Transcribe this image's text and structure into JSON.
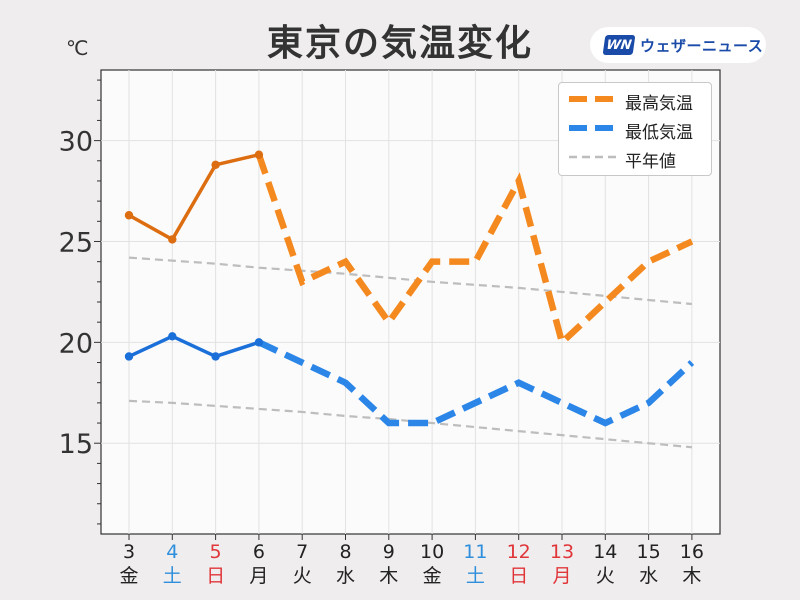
{
  "header": {
    "title": "東京の気温変化",
    "unit": "℃",
    "brand_logo": "WN",
    "brand_name": "ウェザーニュース"
  },
  "chart_data": {
    "type": "line",
    "ylim": [
      10.5,
      33.5
    ],
    "y_ticks": [
      15,
      20,
      25,
      30
    ],
    "grid": true,
    "legend_position": "top-right",
    "categories": [
      {
        "day": "3",
        "weekday": "金",
        "color": "#222222"
      },
      {
        "day": "4",
        "weekday": "土",
        "color": "#2f8fdd"
      },
      {
        "day": "5",
        "weekday": "日",
        "color": "#e0363a"
      },
      {
        "day": "6",
        "weekday": "月",
        "color": "#222222"
      },
      {
        "day": "7",
        "weekday": "火",
        "color": "#222222"
      },
      {
        "day": "8",
        "weekday": "水",
        "color": "#222222"
      },
      {
        "day": "9",
        "weekday": "木",
        "color": "#222222"
      },
      {
        "day": "10",
        "weekday": "金",
        "color": "#222222"
      },
      {
        "day": "11",
        "weekday": "土",
        "color": "#2f8fdd"
      },
      {
        "day": "12",
        "weekday": "日",
        "color": "#e0363a"
      },
      {
        "day": "13",
        "weekday": "月",
        "color": "#e0363a"
      },
      {
        "day": "14",
        "weekday": "火",
        "color": "#222222"
      },
      {
        "day": "15",
        "weekday": "水",
        "color": "#222222"
      },
      {
        "day": "16",
        "weekday": "木",
        "color": "#222222"
      }
    ],
    "series": [
      {
        "name": "最高気温",
        "observed_color": "#dc6d10",
        "forecast_color": "#f4891f",
        "observed_count": 4,
        "values": [
          26.3,
          25.1,
          28.8,
          29.3,
          23,
          24,
          21,
          24,
          24,
          28,
          20,
          22,
          24,
          25
        ]
      },
      {
        "name": "最低気温",
        "observed_color": "#1a6fd8",
        "forecast_color": "#2b86e8",
        "observed_count": 4,
        "values": [
          19.3,
          20.3,
          19.3,
          20.0,
          19,
          18,
          16,
          16,
          17,
          18,
          17,
          16,
          17,
          19
        ]
      },
      {
        "name": "平年値",
        "color": "#bdbdbd",
        "lines": [
          [
            24.2,
            24.05,
            23.9,
            23.7,
            23.55,
            23.4,
            23.2,
            23.0,
            22.85,
            22.7,
            22.5,
            22.3,
            22.1,
            21.9
          ],
          [
            17.1,
            17.0,
            16.85,
            16.7,
            16.55,
            16.35,
            16.2,
            16.0,
            15.8,
            15.6,
            15.4,
            15.2,
            15.0,
            14.8
          ]
        ]
      }
    ]
  }
}
